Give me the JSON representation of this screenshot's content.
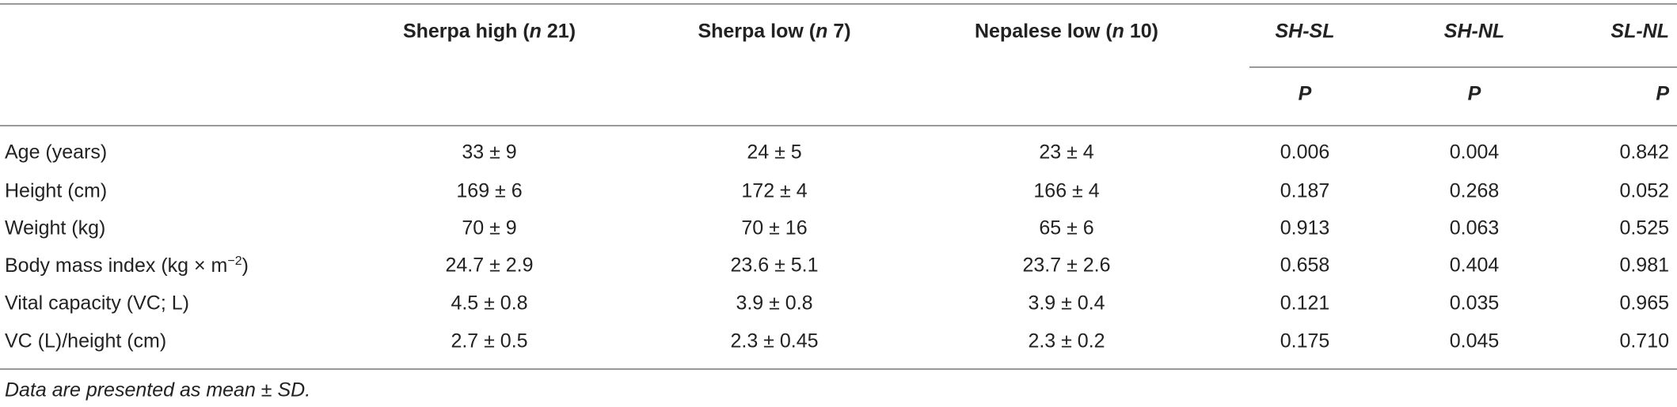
{
  "table": {
    "header": [
      [
        "Sherpa high (",
        "n",
        " 21)"
      ],
      [
        "Sherpa low (",
        "n",
        " 7)"
      ],
      [
        "Nepalese low (",
        "n",
        " 10)"
      ],
      [
        "SH-SL"
      ],
      [
        "SH-NL"
      ],
      [
        "SL-NL"
      ]
    ],
    "subheader": [
      "P",
      "P",
      "P"
    ],
    "rows": [
      [
        [
          "Age (years)"
        ],
        "33 ± 9",
        "24 ± 5",
        "23 ± 4",
        "0.006",
        "0.004",
        "0.842"
      ],
      [
        [
          "Height (cm)"
        ],
        "169 ± 6",
        "172 ± 4",
        "166 ± 4",
        "0.187",
        "0.268",
        "0.052"
      ],
      [
        [
          "Weight (kg)"
        ],
        "70 ± 9",
        "70 ± 16",
        "65 ± 6",
        "0.913",
        "0.063",
        "0.525"
      ],
      [
        [
          "Body mass index (kg × m",
          "−2",
          ")"
        ],
        "24.7 ± 2.9",
        "23.6 ± 5.1",
        "23.7 ± 2.6",
        "0.658",
        "0.404",
        "0.981"
      ],
      [
        [
          "Vital capacity (VC; L)"
        ],
        "4.5 ± 0.8",
        "3.9 ± 0.8",
        "3.9 ± 0.4",
        "0.121",
        "0.035",
        "0.965"
      ],
      [
        [
          "VC (L)/height (cm)"
        ],
        "2.7 ± 0.5",
        "2.3 ± 0.45",
        "2.3 ± 0.2",
        "0.175",
        "0.045",
        "0.710"
      ]
    ],
    "footnote": "Data are presented as mean ± SD."
  }
}
